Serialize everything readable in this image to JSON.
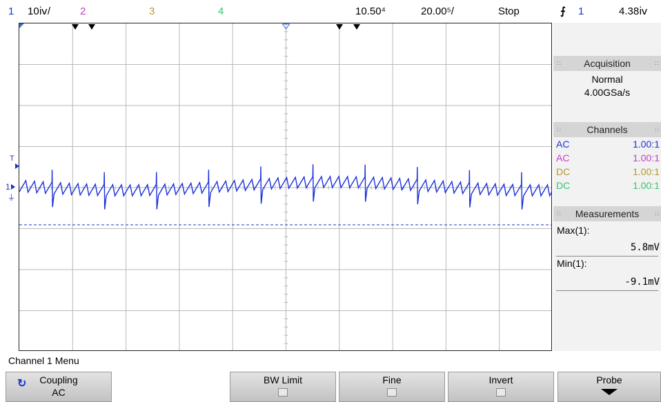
{
  "top_bar": {
    "ch1_num": "1",
    "ch1_scale": "10ⅳ/",
    "ch2_num": "2",
    "ch3_num": "3",
    "ch4_num": "4",
    "timebase_delay": "10.50⁴",
    "timebase_scale": "20.00⁵/",
    "run_state": "Stop",
    "trigger_icon": "rising-edge-trigger",
    "trigger_source": "1",
    "trigger_level": "4.38ⅳ"
  },
  "colors": {
    "ch1": "#1a34c9",
    "ch2": "#c43bc7",
    "ch3": "#b39a2c",
    "ch4": "#36c36d",
    "grid": "#b8b8b8",
    "panel_header": "#d5d5d5"
  },
  "markers": {
    "trigger_marker": "T",
    "ch1_ground": "1"
  },
  "side_panel": {
    "acquisition": {
      "title": "Acquisition",
      "mode": "Normal",
      "rate": "4.00GSa/s"
    },
    "channels": {
      "title": "Channels",
      "rows": [
        {
          "coupling": "AC",
          "ratio": "1.00:1"
        },
        {
          "coupling": "AC",
          "ratio": "1.00:1"
        },
        {
          "coupling": "DC",
          "ratio": "1.00:1"
        },
        {
          "coupling": "DC",
          "ratio": "1.00:1"
        }
      ]
    },
    "measurements": {
      "title": "Measurements",
      "items": [
        {
          "label": "Max(1):",
          "value": "5.8mV"
        },
        {
          "label": "Min(1):",
          "value": "-9.1mV"
        }
      ]
    }
  },
  "menu": {
    "title": "Channel 1 Menu",
    "softkeys": [
      {
        "label": "Coupling",
        "value": "AC",
        "icon": "rotate-arrow-icon"
      },
      {
        "label": "BW Limit",
        "checked": false
      },
      {
        "label": "Fine",
        "checked": false
      },
      {
        "label": "Invert",
        "checked": false
      },
      {
        "label": "Probe",
        "icon": "down-arrow-icon"
      }
    ]
  }
}
